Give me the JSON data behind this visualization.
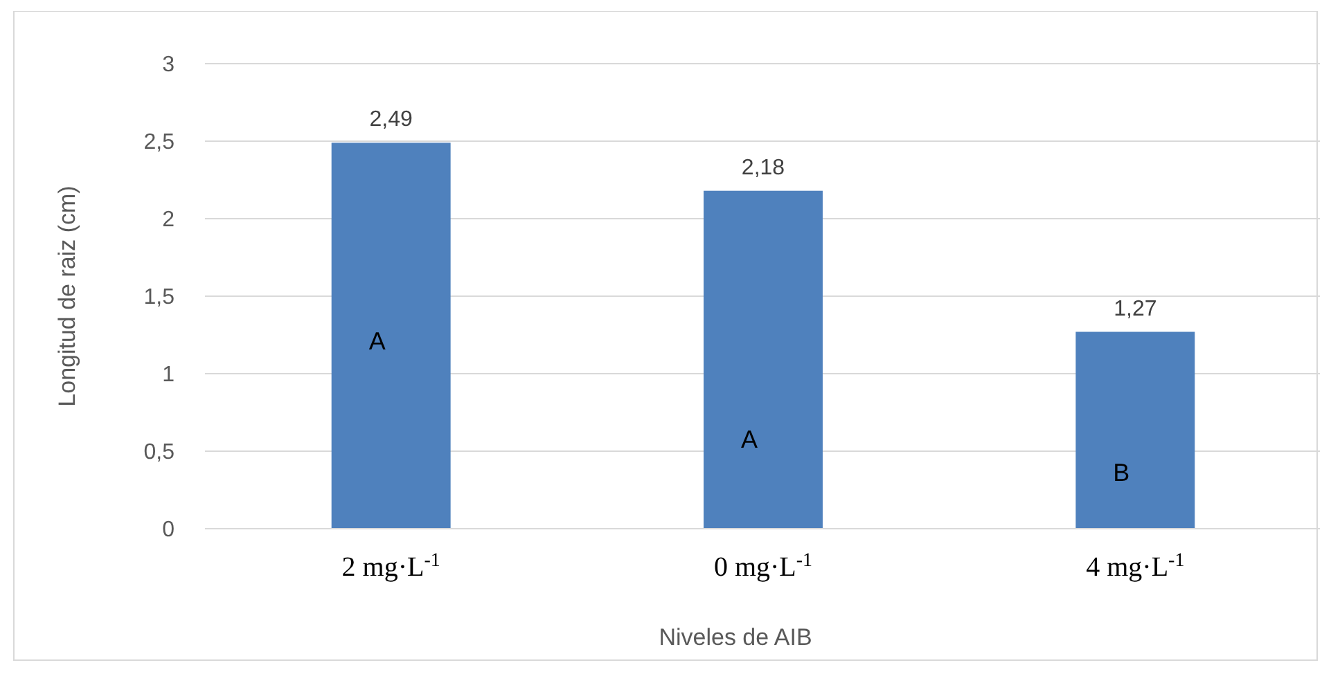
{
  "chart_data": {
    "type": "bar",
    "xlabel": "Niveles de AIB",
    "ylabel": "Longitud de raiz (cm)",
    "categories": [
      "2 mg·L$^{-1}$",
      "0 mg·L$^{-1}$",
      "4 mg·L$^{-1}$"
    ],
    "values": [
      2.49,
      2.18,
      1.27
    ],
    "color": "#4f81bd",
    "value_labels": [
      "2,49",
      "2,18",
      "1,27"
    ],
    "ylim": [
      0,
      3
    ],
    "yticks": [
      0,
      {
        "value": 0.5,
        "label": "0,5"
      },
      1,
      {
        "value": 1.5,
        "label": "1,5"
      },
      2,
      {
        "value": 2.5,
        "label": "2,5"
      },
      3
    ],
    "grid": "y",
    "annotations": [
      "A",
      "A",
      "B"
    ]
  }
}
